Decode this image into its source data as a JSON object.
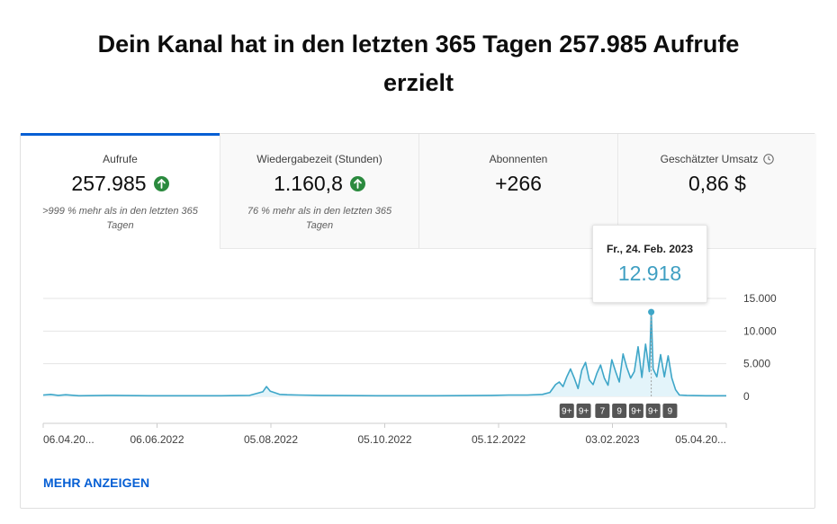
{
  "headline": {
    "line1": "Dein Kanal hat in den letzten 365 Tagen 257.985 Aufrufe",
    "line2": "erzielt"
  },
  "tabs": [
    {
      "label": "Aufrufe",
      "value": "257.985",
      "trend": "up",
      "note": ">999 % mehr als in den letzten 365 Tagen"
    },
    {
      "label": "Wiedergabezeit (Stunden)",
      "value": "1.160,8",
      "trend": "up",
      "note": "76 % mehr als in den letzten 365 Tagen"
    },
    {
      "label": "Abonnenten",
      "value": "+266",
      "note": ""
    },
    {
      "label": "Geschätzter Umsatz",
      "value": "0,86 $",
      "note": "",
      "icon": "clock-icon"
    }
  ],
  "tooltip": {
    "date": "Fr., 24. Feb. 2023",
    "value": "12.918"
  },
  "more_label": "MEHR ANZEIGEN",
  "colors": {
    "accent": "#065fd4",
    "line": "#3ea6c8",
    "area": "#e3f4fa",
    "up": "#2b8a3e",
    "badge": "#555555"
  },
  "chart_data": {
    "type": "area",
    "ylim": [
      0,
      15000
    ],
    "yticks": [
      0,
      5000,
      10000,
      15000
    ],
    "ytick_labels": [
      "0",
      "5.000",
      "10.000",
      "15.000"
    ],
    "xtick_labels": [
      "06.04.20...",
      "06.06.2022",
      "05.08.2022",
      "05.10.2022",
      "05.12.2022",
      "03.02.2023",
      "05.04.20..."
    ],
    "x_start": "2022-04-06",
    "x_end": "2023-04-05",
    "badges": [
      {
        "date": "2023-01-10",
        "label": "9+"
      },
      {
        "date": "2023-01-19",
        "label": "9+"
      },
      {
        "date": "2023-01-29",
        "label": "7"
      },
      {
        "date": "2023-02-07",
        "label": "9"
      },
      {
        "date": "2023-02-16",
        "label": "9+"
      },
      {
        "date": "2023-02-25",
        "label": "9+"
      },
      {
        "date": "2023-03-06",
        "label": "9"
      }
    ],
    "highlight": {
      "date": "2023-02-24",
      "value": 12918
    },
    "series": [
      {
        "x": [
          "2022-04-06",
          "2022-04-10",
          "2022-04-14",
          "2022-04-18",
          "2022-04-25",
          "2022-05-10",
          "2022-06-01",
          "2022-06-20",
          "2022-07-10",
          "2022-07-25",
          "2022-08-01",
          "2022-08-03",
          "2022-08-05",
          "2022-08-07",
          "2022-08-10",
          "2022-08-14",
          "2022-08-20",
          "2022-09-01",
          "2022-10-01",
          "2022-11-01",
          "2022-12-01",
          "2022-12-10",
          "2022-12-20",
          "2022-12-28",
          "2023-01-01",
          "2023-01-04",
          "2023-01-06",
          "2023-01-08",
          "2023-01-10",
          "2023-01-12",
          "2023-01-14",
          "2023-01-16",
          "2023-01-18",
          "2023-01-20",
          "2023-01-22",
          "2023-01-24",
          "2023-01-26",
          "2023-01-28",
          "2023-01-30",
          "2023-02-01",
          "2023-02-03",
          "2023-02-05",
          "2023-02-07",
          "2023-02-09",
          "2023-02-11",
          "2023-02-13",
          "2023-02-15",
          "2023-02-17",
          "2023-02-19",
          "2023-02-21",
          "2023-02-23",
          "2023-02-24",
          "2023-02-25",
          "2023-02-27",
          "2023-03-01",
          "2023-03-03",
          "2023-03-05",
          "2023-03-07",
          "2023-03-09",
          "2023-03-11",
          "2023-03-15",
          "2023-03-25",
          "2023-04-05"
        ],
        "y": [
          200,
          300,
          150,
          250,
          100,
          150,
          100,
          100,
          100,
          150,
          700,
          1500,
          800,
          600,
          300,
          250,
          200,
          150,
          100,
          100,
          150,
          200,
          200,
          300,
          600,
          1800,
          2200,
          1500,
          3000,
          4200,
          2800,
          1200,
          4000,
          5200,
          2500,
          1800,
          3500,
          4800,
          2800,
          1700,
          5600,
          3800,
          2200,
          6500,
          4400,
          2800,
          3800,
          7600,
          2900,
          8000,
          3800,
          12918,
          4200,
          3000,
          6400,
          3000,
          6200,
          2800,
          1000,
          200,
          150,
          100,
          100
        ]
      }
    ]
  }
}
